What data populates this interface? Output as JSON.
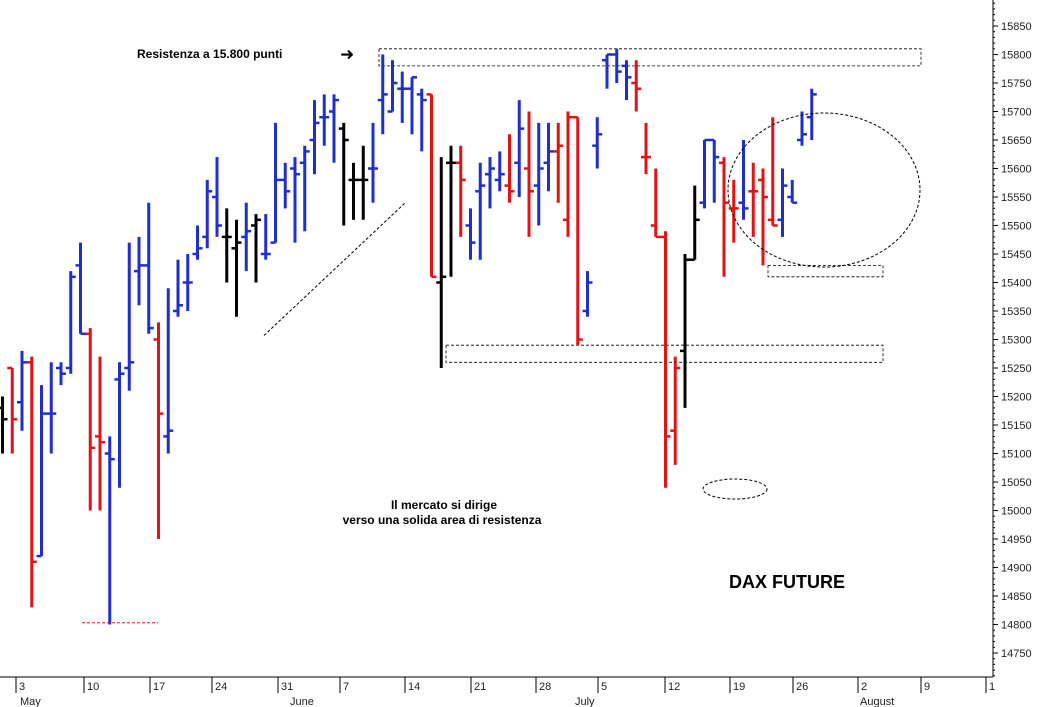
{
  "chart_data": {
    "type": "ohlc",
    "title": "DAX FUTURE",
    "ylim": [
      14700,
      15900
    ],
    "y_ticks": [
      14750,
      14800,
      14850,
      14900,
      14950,
      15000,
      15050,
      15100,
      15150,
      15200,
      15250,
      15300,
      15350,
      15400,
      15450,
      15500,
      15550,
      15600,
      15650,
      15700,
      15750,
      15800,
      15850
    ],
    "x_ticks": [
      "3",
      "10",
      "17",
      "24",
      "31",
      "7",
      "14",
      "21",
      "28",
      "5",
      "12",
      "19",
      "26",
      "2",
      "9",
      "1"
    ],
    "month_labels": [
      "May",
      "June",
      "July",
      "August"
    ],
    "colors": {
      "up": "#1f2fc8",
      "down": "#e01414",
      "neutral": "#000000"
    },
    "bars": [
      {
        "i": 0,
        "d": "2021-05-03",
        "o": 15180,
        "h": 15200,
        "l": 15100,
        "c": 15160,
        "col": "neutral"
      },
      {
        "i": 1,
        "d": "2021-05-04",
        "o": 15250,
        "h": 15250,
        "l": 15100,
        "c": 15160,
        "col": "down"
      },
      {
        "i": 2,
        "d": "2021-05-05",
        "o": 15190,
        "h": 15280,
        "l": 15140,
        "c": 15260,
        "col": "up"
      },
      {
        "i": 3,
        "d": "2021-05-06",
        "o": 15260,
        "h": 15270,
        "l": 14830,
        "c": 14910,
        "col": "down"
      },
      {
        "i": 4,
        "d": "2021-05-07",
        "o": 14920,
        "h": 15220,
        "l": 14920,
        "c": 15170,
        "col": "up"
      },
      {
        "i": 5,
        "d": "2021-05-10",
        "o": 15170,
        "h": 15260,
        "l": 15100,
        "c": 15170,
        "col": "up"
      },
      {
        "i": 6,
        "d": "2021-05-11",
        "o": 15250,
        "h": 15260,
        "l": 15220,
        "c": 15240,
        "col": "up"
      },
      {
        "i": 7,
        "d": "2021-05-12",
        "o": 15250,
        "h": 15420,
        "l": 15240,
        "c": 15410,
        "col": "up"
      },
      {
        "i": 8,
        "d": "2021-05-13",
        "o": 15430,
        "h": 15470,
        "l": 15310,
        "c": 15310,
        "col": "up"
      },
      {
        "i": 9,
        "d": "2021-05-14",
        "o": 15310,
        "h": 15320,
        "l": 15000,
        "c": 15110,
        "col": "down"
      },
      {
        "i": 10,
        "d": "2021-05-17",
        "o": 15130,
        "h": 15270,
        "l": 15000,
        "c": 15120,
        "col": "down"
      },
      {
        "i": 11,
        "d": "2021-05-18",
        "o": 15100,
        "h": 15130,
        "l": 14800,
        "c": 15090,
        "col": "up"
      },
      {
        "i": 12,
        "d": "2021-05-19",
        "o": 15230,
        "h": 15260,
        "l": 15040,
        "c": 15240,
        "col": "up"
      },
      {
        "i": 13,
        "d": "2021-05-20",
        "o": 15250,
        "h": 15470,
        "l": 15210,
        "c": 15260,
        "col": "up"
      },
      {
        "i": 14,
        "d": "2021-05-21",
        "o": 15420,
        "h": 15480,
        "l": 15360,
        "c": 15430,
        "col": "up"
      },
      {
        "i": 15,
        "d": "2021-05-24",
        "o": 15430,
        "h": 15540,
        "l": 15310,
        "c": 15320,
        "col": "up"
      },
      {
        "i": 16,
        "d": "2021-05-25",
        "o": 15300,
        "h": 15330,
        "l": 14950,
        "c": 15170,
        "col": "down"
      },
      {
        "i": 17,
        "d": "2021-05-26",
        "o": 15130,
        "h": 15390,
        "l": 15100,
        "c": 15140,
        "col": "up"
      },
      {
        "i": 18,
        "d": "2021-05-27",
        "o": 15350,
        "h": 15440,
        "l": 15340,
        "c": 15360,
        "col": "up"
      },
      {
        "i": 19,
        "d": "2021-05-28",
        "o": 15400,
        "h": 15450,
        "l": 15350,
        "c": 15400,
        "col": "up"
      },
      {
        "i": 20,
        "d": "2021-05-31",
        "o": 15450,
        "h": 15500,
        "l": 15440,
        "c": 15460,
        "col": "up"
      },
      {
        "i": 21,
        "d": "2021-06-01",
        "o": 15480,
        "h": 15580,
        "l": 15460,
        "c": 15560,
        "col": "up"
      },
      {
        "i": 22,
        "d": "2021-06-02",
        "o": 15550,
        "h": 15620,
        "l": 15480,
        "c": 15500,
        "col": "up"
      },
      {
        "i": 23,
        "d": "2021-06-03",
        "o": 15480,
        "h": 15530,
        "l": 15400,
        "c": 15480,
        "col": "neutral"
      },
      {
        "i": 24,
        "d": "2021-06-04",
        "o": 15460,
        "h": 15510,
        "l": 15340,
        "c": 15470,
        "col": "neutral"
      },
      {
        "i": 25,
        "d": "2021-06-07",
        "o": 15480,
        "h": 15540,
        "l": 15420,
        "c": 15490,
        "col": "up"
      },
      {
        "i": 26,
        "d": "2021-06-08",
        "o": 15500,
        "h": 15520,
        "l": 15400,
        "c": 15510,
        "col": "neutral"
      },
      {
        "i": 27,
        "d": "2021-06-09",
        "o": 15450,
        "h": 15520,
        "l": 15440,
        "c": 15450,
        "col": "up"
      },
      {
        "i": 28,
        "d": "2021-06-10",
        "o": 15470,
        "h": 15680,
        "l": 15470,
        "c": 15580,
        "col": "up"
      },
      {
        "i": 29,
        "d": "2021-06-11",
        "o": 15580,
        "h": 15610,
        "l": 15530,
        "c": 15560,
        "col": "up"
      },
      {
        "i": 30,
        "d": "2021-06-14",
        "o": 15600,
        "h": 15620,
        "l": 15470,
        "c": 15590,
        "col": "up"
      },
      {
        "i": 31,
        "d": "2021-06-15",
        "o": 15610,
        "h": 15640,
        "l": 15490,
        "c": 15630,
        "col": "up"
      },
      {
        "i": 32,
        "d": "2021-06-16",
        "o": 15650,
        "h": 15720,
        "l": 15590,
        "c": 15680,
        "col": "up"
      },
      {
        "i": 33,
        "d": "2021-06-17",
        "o": 15690,
        "h": 15730,
        "l": 15640,
        "c": 15690,
        "col": "up"
      },
      {
        "i": 34,
        "d": "2021-06-18",
        "o": 15700,
        "h": 15730,
        "l": 15610,
        "c": 15720,
        "col": "up"
      },
      {
        "i": 35,
        "d": "2021-06-21",
        "o": 15670,
        "h": 15680,
        "l": 15500,
        "c": 15650,
        "col": "neutral"
      },
      {
        "i": 36,
        "d": "2021-06-22",
        "o": 15580,
        "h": 15610,
        "l": 15510,
        "c": 15580,
        "col": "neutral"
      },
      {
        "i": 37,
        "d": "2021-06-23",
        "o": 15580,
        "h": 15640,
        "l": 15510,
        "c": 15580,
        "col": "neutral"
      },
      {
        "i": 38,
        "d": "2021-06-24",
        "o": 15600,
        "h": 15680,
        "l": 15540,
        "c": 15600,
        "col": "up"
      },
      {
        "i": 39,
        "d": "2021-06-25",
        "o": 15720,
        "h": 15800,
        "l": 15660,
        "c": 15730,
        "col": "up"
      },
      {
        "i": 40,
        "d": "2021-06-28",
        "o": 15700,
        "h": 15790,
        "l": 15700,
        "c": 15750,
        "col": "up"
      },
      {
        "i": 41,
        "d": "2021-06-29",
        "o": 15740,
        "h": 15770,
        "l": 15680,
        "c": 15740,
        "col": "up"
      },
      {
        "i": 42,
        "d": "2021-06-30",
        "o": 15740,
        "h": 15760,
        "l": 15660,
        "c": 15760,
        "col": "up"
      },
      {
        "i": 43,
        "d": "2021-07-01",
        "o": 15730,
        "h": 15740,
        "l": 15630,
        "c": 15720,
        "col": "up"
      },
      {
        "i": 44,
        "d": "2021-07-02",
        "o": 15730,
        "h": 15730,
        "l": 15410,
        "c": 15410,
        "col": "down"
      },
      {
        "i": 45,
        "d": "2021-07-05",
        "o": 15400,
        "h": 15620,
        "l": 15250,
        "c": 15410,
        "col": "neutral"
      },
      {
        "i": 46,
        "d": "2021-07-06",
        "o": 15610,
        "h": 15640,
        "l": 15410,
        "c": 15610,
        "col": "neutral"
      },
      {
        "i": 47,
        "d": "2021-07-07",
        "o": 15610,
        "h": 15640,
        "l": 15480,
        "c": 15580,
        "col": "down"
      },
      {
        "i": 48,
        "d": "2021-07-08",
        "o": 15500,
        "h": 15530,
        "l": 15440,
        "c": 15470,
        "col": "up"
      },
      {
        "i": 49,
        "d": "2021-07-09",
        "o": 15560,
        "h": 15610,
        "l": 15440,
        "c": 15570,
        "col": "up"
      },
      {
        "i": 50,
        "d": "2021-07-12",
        "o": 15590,
        "h": 15620,
        "l": 15530,
        "c": 15600,
        "col": "up"
      },
      {
        "i": 51,
        "d": "2021-07-13",
        "o": 15580,
        "h": 15630,
        "l": 15560,
        "c": 15590,
        "col": "up"
      },
      {
        "i": 52,
        "d": "2021-07-14",
        "o": 15570,
        "h": 15660,
        "l": 15540,
        "c": 15560,
        "col": "down"
      },
      {
        "i": 53,
        "d": "2021-07-15",
        "o": 15610,
        "h": 15720,
        "l": 15550,
        "c": 15670,
        "col": "up"
      },
      {
        "i": 54,
        "d": "2021-07-16",
        "o": 15600,
        "h": 15700,
        "l": 15480,
        "c": 15560,
        "col": "down"
      },
      {
        "i": 55,
        "d": "2021-07-19",
        "o": 15570,
        "h": 15680,
        "l": 15500,
        "c": 15600,
        "col": "up"
      },
      {
        "i": 56,
        "d": "2021-07-20",
        "o": 15610,
        "h": 15680,
        "l": 15560,
        "c": 15630,
        "col": "up"
      },
      {
        "i": 57,
        "d": "2021-07-21",
        "o": 15630,
        "h": 15680,
        "l": 15540,
        "c": 15640,
        "col": "down"
      },
      {
        "i": 58,
        "d": "2021-07-22",
        "o": 15510,
        "h": 15700,
        "l": 15480,
        "c": 15690,
        "col": "down"
      },
      {
        "i": 59,
        "d": "2021-07-23",
        "o": 15690,
        "h": 15690,
        "l": 15290,
        "c": 15300,
        "col": "down"
      },
      {
        "i": 60,
        "d": "2021-07-26",
        "o": 15350,
        "h": 15420,
        "l": 15340,
        "c": 15400,
        "col": "up"
      },
      {
        "i": 61,
        "d": "2021-07-27",
        "o": 15640,
        "h": 15690,
        "l": 15600,
        "c": 15660,
        "col": "up"
      },
      {
        "i": 62,
        "d": "2021-07-28",
        "o": 15790,
        "h": 15800,
        "l": 15740,
        "c": 15800,
        "col": "up"
      },
      {
        "i": 63,
        "d": "2021-07-29",
        "o": 15800,
        "h": 15810,
        "l": 15750,
        "c": 15770,
        "col": "up"
      },
      {
        "i": 64,
        "d": "2021-07-30",
        "o": 15780,
        "h": 15790,
        "l": 15720,
        "c": 15760,
        "col": "up"
      },
      {
        "i": 65,
        "d": "2021-08-02",
        "o": 15750,
        "h": 15790,
        "l": 15700,
        "c": 15740,
        "col": "down"
      },
      {
        "i": 66,
        "d": "2021-08-03",
        "o": 15620,
        "h": 15680,
        "l": 15590,
        "c": 15620,
        "col": "down"
      },
      {
        "i": 67,
        "d": "2021-08-04",
        "o": 15500,
        "h": 15600,
        "l": 15480,
        "c": 15480,
        "col": "down"
      },
      {
        "i": 68,
        "d": "2021-08-05",
        "o": 15480,
        "h": 15490,
        "l": 15040,
        "c": 15130,
        "col": "down"
      },
      {
        "i": 69,
        "d": "2021-08-06",
        "o": 15140,
        "h": 15270,
        "l": 15080,
        "c": 15250,
        "col": "down"
      },
      {
        "i": 70,
        "d": "2021-08-09",
        "o": 15280,
        "h": 15450,
        "l": 15180,
        "c": 15440,
        "col": "neutral"
      },
      {
        "i": 71,
        "d": "2021-08-10",
        "o": 15440,
        "h": 15570,
        "l": 15440,
        "c": 15510,
        "col": "neutral"
      },
      {
        "i": 72,
        "d": "2021-08-11",
        "o": 15540,
        "h": 15650,
        "l": 15530,
        "c": 15650,
        "col": "up"
      },
      {
        "i": 73,
        "d": "2021-08-12",
        "o": 15650,
        "h": 15650,
        "l": 15540,
        "c": 15620,
        "col": "up"
      },
      {
        "i": 74,
        "d": "2021-08-13",
        "o": 15610,
        "h": 15620,
        "l": 15410,
        "c": 15540,
        "col": "down"
      },
      {
        "i": 75,
        "d": "2021-08-16",
        "o": 15530,
        "h": 15580,
        "l": 15470,
        "c": 15530,
        "col": "down"
      },
      {
        "i": 76,
        "d": "2021-08-17",
        "o": 15540,
        "h": 15650,
        "l": 15510,
        "c": 15530,
        "col": "up"
      },
      {
        "i": 77,
        "d": "2021-08-18",
        "o": 15560,
        "h": 15610,
        "l": 15480,
        "c": 15560,
        "col": "down"
      },
      {
        "i": 78,
        "d": "2021-08-19",
        "o": 15580,
        "h": 15600,
        "l": 15430,
        "c": 15550,
        "col": "down"
      },
      {
        "i": 79,
        "d": "2021-08-20",
        "o": 15510,
        "h": 15690,
        "l": 15500,
        "c": 15500,
        "col": "down"
      },
      {
        "i": 80,
        "d": "2021-08-23",
        "o": 15510,
        "h": 15600,
        "l": 15480,
        "c": 15570,
        "col": "up"
      },
      {
        "i": 81,
        "d": "2021-08-24",
        "o": 15550,
        "h": 15580,
        "l": 15540,
        "c": 15540,
        "col": "up"
      },
      {
        "i": 82,
        "d": "2021-08-25",
        "o": 15650,
        "h": 15700,
        "l": 15640,
        "c": 15660,
        "col": "up"
      },
      {
        "i": 83,
        "d": "2021-08-26",
        "o": 15690,
        "h": 15740,
        "l": 15650,
        "c": 15730,
        "col": "up"
      }
    ],
    "annotations": {
      "resistance": "Resistenza a 15.800 punti",
      "arrow": "➜",
      "note_line1": "Il mercato si dirige",
      "note_line2": "verso una solida area di resistenza"
    },
    "zones": [
      {
        "name": "resistance-zone",
        "from": 15780,
        "to": 15810
      },
      {
        "name": "support-zone",
        "from": 15260,
        "to": 15290
      },
      {
        "name": "local-support-zone",
        "from": 15410,
        "to": 15430
      }
    ],
    "trendline": {
      "from": {
        "i": 24,
        "v": 15400
      },
      "to": {
        "i": 40,
        "v": 15540
      }
    },
    "low_marker": {
      "v": 14810
    }
  }
}
